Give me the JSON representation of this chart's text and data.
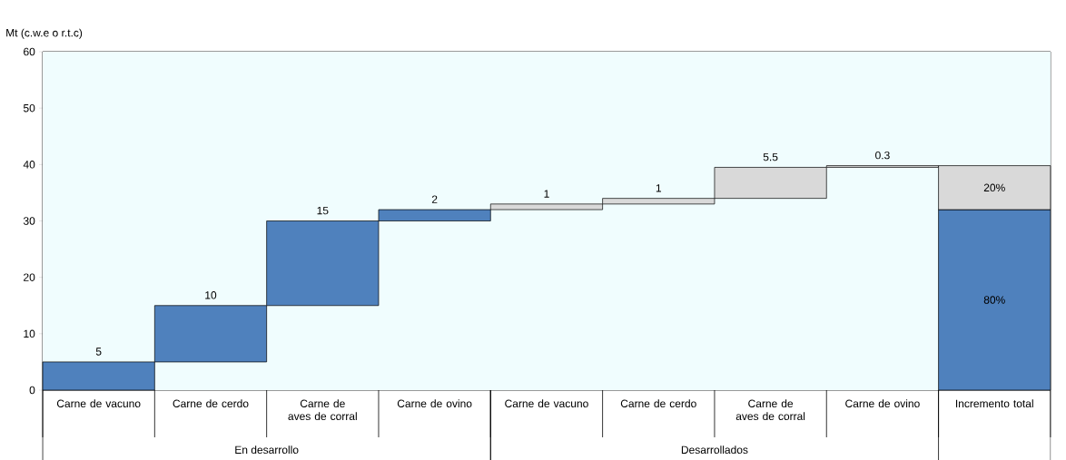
{
  "chart_data": {
    "type": "bar",
    "ylabel": "Mt (c.w.e o r.t.c)",
    "categories": [
      "Carne de vacuno",
      "Carne de cerdo",
      "Carne de aves de corral",
      "Carne de ovino",
      "Carne de vacuno",
      "Carne de cerdo",
      "Carne de aves de corral",
      "Carne de ovino",
      "Incremento total"
    ],
    "series": [
      {
        "color": "#4f81bd",
        "base": [
          0,
          5,
          15,
          30,
          null,
          null,
          null,
          null,
          0
        ],
        "values": [
          5,
          10,
          15,
          2,
          null,
          null,
          null,
          null,
          32
        ],
        "value_labels": [
          "5",
          "10",
          "15",
          "2",
          null,
          null,
          null,
          null,
          null
        ]
      },
      {
        "color": "#d9d9d9",
        "base": [
          null,
          null,
          null,
          null,
          32,
          33,
          34,
          39.5,
          32
        ],
        "values": [
          null,
          null,
          null,
          null,
          1,
          1,
          5.5,
          0.3,
          7.8
        ],
        "value_labels": [
          null,
          null,
          null,
          null,
          "1",
          "1",
          "5.5",
          "0.3",
          null
        ]
      }
    ],
    "ylim": [
      0,
      60
    ],
    "yticks": [
      0,
      10,
      20,
      30,
      40,
      50,
      60
    ],
    "annotations": [
      "En desarrollo",
      "Desarrollados",
      "80%",
      "20%"
    ]
  }
}
